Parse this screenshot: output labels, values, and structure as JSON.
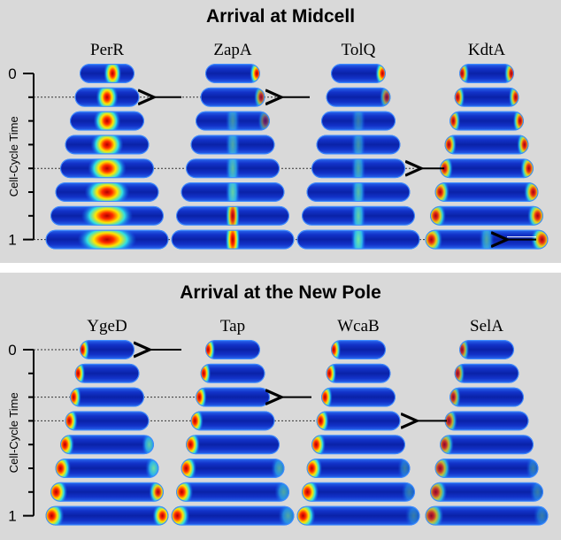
{
  "panels": [
    {
      "title": "Arrival at Midcell",
      "columns": [
        "PerR",
        "ZapA",
        "TolQ",
        "KdtA"
      ],
      "axis_label": "Cell-Cycle Time",
      "ticks": [
        "0",
        "1"
      ]
    },
    {
      "title": "Arrival at the New Pole",
      "columns": [
        "YgeD",
        "Tap",
        "WcaB",
        "SelA"
      ],
      "axis_label": "Cell-Cycle Time",
      "ticks": [
        "0",
        "1"
      ]
    }
  ]
}
